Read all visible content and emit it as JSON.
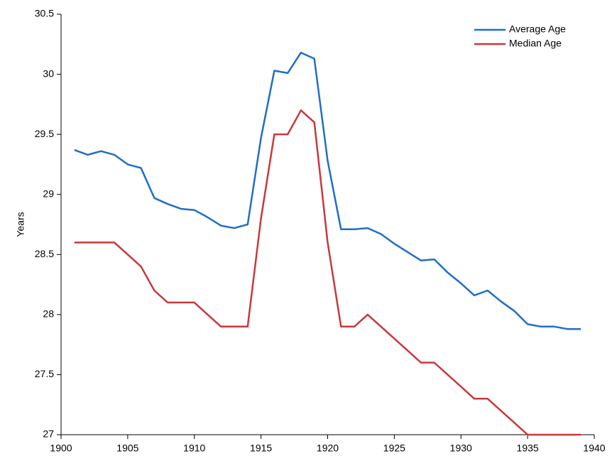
{
  "chart_data": {
    "type": "line",
    "y_label": "Years",
    "x": [
      1901,
      1902,
      1903,
      1904,
      1905,
      1906,
      1907,
      1908,
      1909,
      1910,
      1911,
      1912,
      1913,
      1914,
      1915,
      1916,
      1917,
      1918,
      1919,
      1920,
      1921,
      1922,
      1923,
      1924,
      1925,
      1926,
      1927,
      1928,
      1929,
      1930,
      1931,
      1932,
      1933,
      1934,
      1935,
      1936,
      1937,
      1938,
      1939
    ],
    "series": [
      {
        "name": "Average Age",
        "color": "#1f6fc5",
        "values": [
          29.37,
          29.33,
          29.36,
          29.33,
          29.25,
          29.22,
          28.97,
          28.92,
          28.88,
          28.87,
          28.81,
          28.74,
          28.72,
          28.75,
          29.47,
          30.03,
          30.01,
          30.18,
          30.13,
          29.28,
          28.71,
          28.71,
          28.72,
          28.67,
          28.59,
          28.52,
          28.45,
          28.46,
          28.35,
          28.26,
          28.16,
          28.2,
          28.11,
          28.03,
          27.92,
          27.9,
          27.9,
          27.88,
          27.88
        ]
      },
      {
        "name": "Median Age",
        "color": "#c8383c",
        "values": [
          28.6,
          28.6,
          28.6,
          28.6,
          28.5,
          28.4,
          28.2,
          28.1,
          28.1,
          28.1,
          28.0,
          27.9,
          27.9,
          27.9,
          28.8,
          29.5,
          29.5,
          29.7,
          29.6,
          28.6,
          27.9,
          27.9,
          28.0,
          27.9,
          27.8,
          27.7,
          27.6,
          27.6,
          27.5,
          27.4,
          27.3,
          27.3,
          27.2,
          27.1,
          27.0,
          27.0,
          27.0,
          27.0,
          27.0
        ]
      }
    ],
    "xlim": [
      1900,
      1940
    ],
    "xticks": [
      1900,
      1905,
      1910,
      1915,
      1920,
      1925,
      1930,
      1935,
      1940
    ],
    "ylim": [
      27,
      30.5
    ],
    "yticks": [
      27,
      27.5,
      28,
      28.5,
      29,
      29.5,
      30,
      30.5
    ],
    "grid": false,
    "legend": "upper right"
  }
}
